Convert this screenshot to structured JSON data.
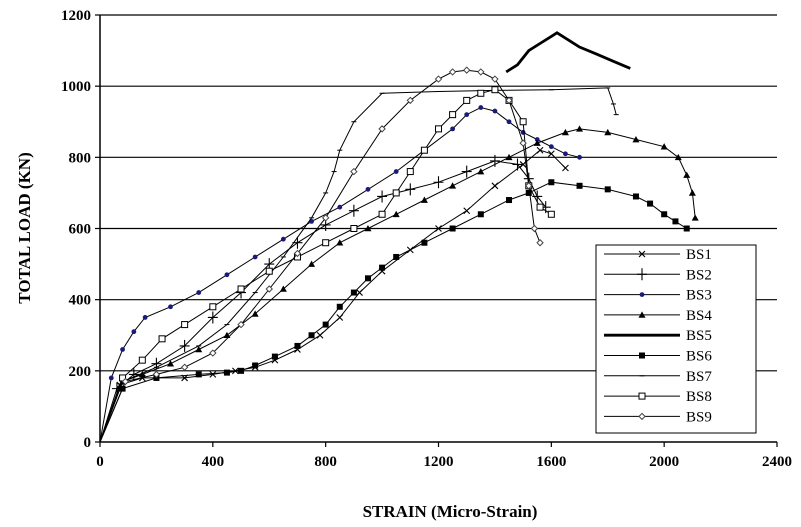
{
  "chart_data": {
    "type": "line",
    "title": "",
    "xlabel": "STRAIN (Micro-Strain)",
    "ylabel": "TOTAL LOAD (KN)",
    "xlim": [
      0,
      2400
    ],
    "ylim": [
      0,
      1200
    ],
    "xticks": [
      0,
      400,
      800,
      1200,
      1600,
      2000,
      2400
    ],
    "yticks": [
      0,
      200,
      400,
      600,
      800,
      1000,
      1200
    ],
    "xtick_labels": [
      "0",
      "400",
      "800",
      "1200",
      "1600",
      "2000",
      "2400"
    ],
    "ytick_labels": [
      "0",
      "200",
      "400",
      "600",
      "800",
      "1000",
      "1200"
    ],
    "grid": "horizontal",
    "legend_position": "bottom-right",
    "series": [
      {
        "name": "BS1",
        "marker": "x",
        "x": [
          0,
          70,
          150,
          300,
          400,
          480,
          550,
          620,
          700,
          780,
          850,
          920,
          1000,
          1100,
          1200,
          1300,
          1400,
          1500,
          1560,
          1600,
          1650
        ],
        "y": [
          0,
          160,
          180,
          180,
          190,
          200,
          210,
          230,
          260,
          300,
          350,
          420,
          480,
          540,
          600,
          650,
          720,
          780,
          820,
          810,
          770
        ]
      },
      {
        "name": "BS2",
        "marker": "plus",
        "x": [
          0,
          60,
          120,
          200,
          300,
          400,
          500,
          600,
          700,
          800,
          900,
          1000,
          1100,
          1200,
          1300,
          1400,
          1480,
          1520,
          1550,
          1580
        ],
        "y": [
          0,
          150,
          190,
          220,
          270,
          350,
          420,
          500,
          560,
          610,
          650,
          690,
          710,
          730,
          760,
          790,
          780,
          740,
          690,
          660
        ]
      },
      {
        "name": "BS3",
        "marker": "dot",
        "x": [
          0,
          40,
          80,
          120,
          160,
          250,
          350,
          450,
          550,
          650,
          750,
          850,
          950,
          1050,
          1150,
          1250,
          1300,
          1350,
          1400,
          1450,
          1500,
          1550,
          1600,
          1650,
          1700
        ],
        "y": [
          0,
          180,
          260,
          310,
          350,
          380,
          420,
          470,
          520,
          570,
          620,
          660,
          710,
          760,
          820,
          880,
          920,
          940,
          930,
          900,
          870,
          850,
          830,
          810,
          800
        ]
      },
      {
        "name": "BS4",
        "marker": "triangle",
        "x": [
          0,
          80,
          150,
          250,
          350,
          450,
          550,
          650,
          750,
          850,
          950,
          1050,
          1150,
          1250,
          1350,
          1450,
          1550,
          1650,
          1700,
          1800,
          1900,
          2000,
          2050,
          2080,
          2100,
          2110
        ],
        "y": [
          0,
          170,
          190,
          220,
          260,
          300,
          360,
          430,
          500,
          560,
          600,
          640,
          680,
          720,
          760,
          800,
          840,
          870,
          880,
          870,
          850,
          830,
          800,
          750,
          700,
          630
        ]
      },
      {
        "name": "BS5",
        "marker": "thick",
        "x": [
          1440,
          1480,
          1520,
          1560,
          1600,
          1620,
          1660,
          1700,
          1760,
          1820,
          1880
        ],
        "y": [
          1040,
          1060,
          1100,
          1120,
          1140,
          1150,
          1130,
          1110,
          1090,
          1070,
          1050
        ]
      },
      {
        "name": "BS6",
        "marker": "square-filled",
        "x": [
          0,
          80,
          200,
          350,
          450,
          500,
          550,
          620,
          700,
          750,
          800,
          850,
          900,
          950,
          1000,
          1050,
          1150,
          1250,
          1350,
          1450,
          1520,
          1600,
          1700,
          1800,
          1900,
          1950,
          2000,
          2040,
          2080
        ],
        "y": [
          0,
          150,
          180,
          190,
          195,
          200,
          215,
          240,
          270,
          300,
          330,
          380,
          420,
          460,
          490,
          520,
          560,
          600,
          640,
          680,
          700,
          730,
          720,
          710,
          690,
          670,
          640,
          620,
          600
        ]
      },
      {
        "name": "BS7",
        "marker": "dash",
        "x": [
          0,
          80,
          200,
          350,
          450,
          550,
          650,
          750,
          800,
          830,
          850,
          900,
          1000,
          1200,
          1400,
          1600,
          1800,
          1820,
          1830
        ],
        "y": [
          0,
          170,
          210,
          270,
          330,
          420,
          520,
          630,
          700,
          760,
          820,
          900,
          980,
          985,
          988,
          990,
          995,
          950,
          920
        ]
      },
      {
        "name": "BS8",
        "marker": "square-open",
        "x": [
          0,
          80,
          150,
          220,
          300,
          400,
          500,
          600,
          700,
          800,
          900,
          1000,
          1050,
          1100,
          1150,
          1200,
          1250,
          1300,
          1350,
          1400,
          1450,
          1500,
          1520,
          1560,
          1600
        ],
        "y": [
          0,
          180,
          230,
          290,
          330,
          380,
          430,
          480,
          520,
          560,
          600,
          640,
          700,
          760,
          820,
          880,
          920,
          960,
          980,
          990,
          960,
          900,
          720,
          660,
          640
        ]
      },
      {
        "name": "BS9",
        "marker": "diamond",
        "x": [
          0,
          90,
          200,
          300,
          400,
          500,
          600,
          700,
          800,
          900,
          1000,
          1100,
          1200,
          1250,
          1300,
          1350,
          1400,
          1450,
          1500,
          1520,
          1540,
          1560
        ],
        "y": [
          0,
          170,
          190,
          210,
          250,
          330,
          430,
          530,
          630,
          760,
          880,
          960,
          1020,
          1040,
          1045,
          1040,
          1020,
          960,
          840,
          720,
          600,
          560
        ]
      }
    ]
  }
}
